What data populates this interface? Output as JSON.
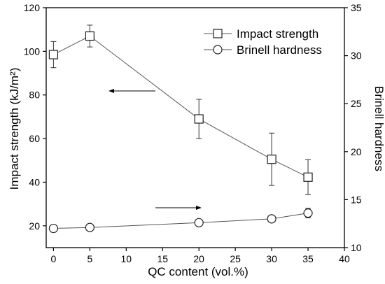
{
  "chart_data": {
    "type": "line",
    "xlabel": "QC content (vol.%)",
    "ylabel_left": "Impact strength (kJ/m²)",
    "ylabel_right": "Brinell hardness",
    "xlim": [
      -1,
      40
    ],
    "ylim_left": [
      10,
      120
    ],
    "ylim_right": [
      10,
      35
    ],
    "x_ticks": [
      0,
      5,
      10,
      15,
      20,
      25,
      30,
      35,
      40
    ],
    "y_left_ticks": [
      20,
      40,
      60,
      80,
      100,
      120
    ],
    "y_right_ticks": [
      10,
      15,
      20,
      25,
      30,
      35
    ],
    "legend_position": "top-right",
    "series": [
      {
        "name": "Impact strength",
        "axis": "left",
        "marker": "square",
        "x": [
          0,
          5,
          20,
          30,
          35
        ],
        "y": [
          98.5,
          107,
          69,
          50.5,
          42.3
        ],
        "yerr": [
          6,
          5,
          9,
          12,
          8
        ]
      },
      {
        "name": "Brinell hardness",
        "axis": "right",
        "marker": "circle",
        "x": [
          0,
          5,
          20,
          30,
          35
        ],
        "y": [
          12.0,
          12.1,
          12.6,
          13.0,
          13.6
        ],
        "yerr": [
          0.15,
          0.15,
          0.3,
          0.3,
          0.5
        ]
      }
    ],
    "annotations": [
      {
        "type": "arrow",
        "direction": "left",
        "axis": "left"
      },
      {
        "type": "arrow",
        "direction": "right",
        "axis": "right"
      }
    ]
  }
}
